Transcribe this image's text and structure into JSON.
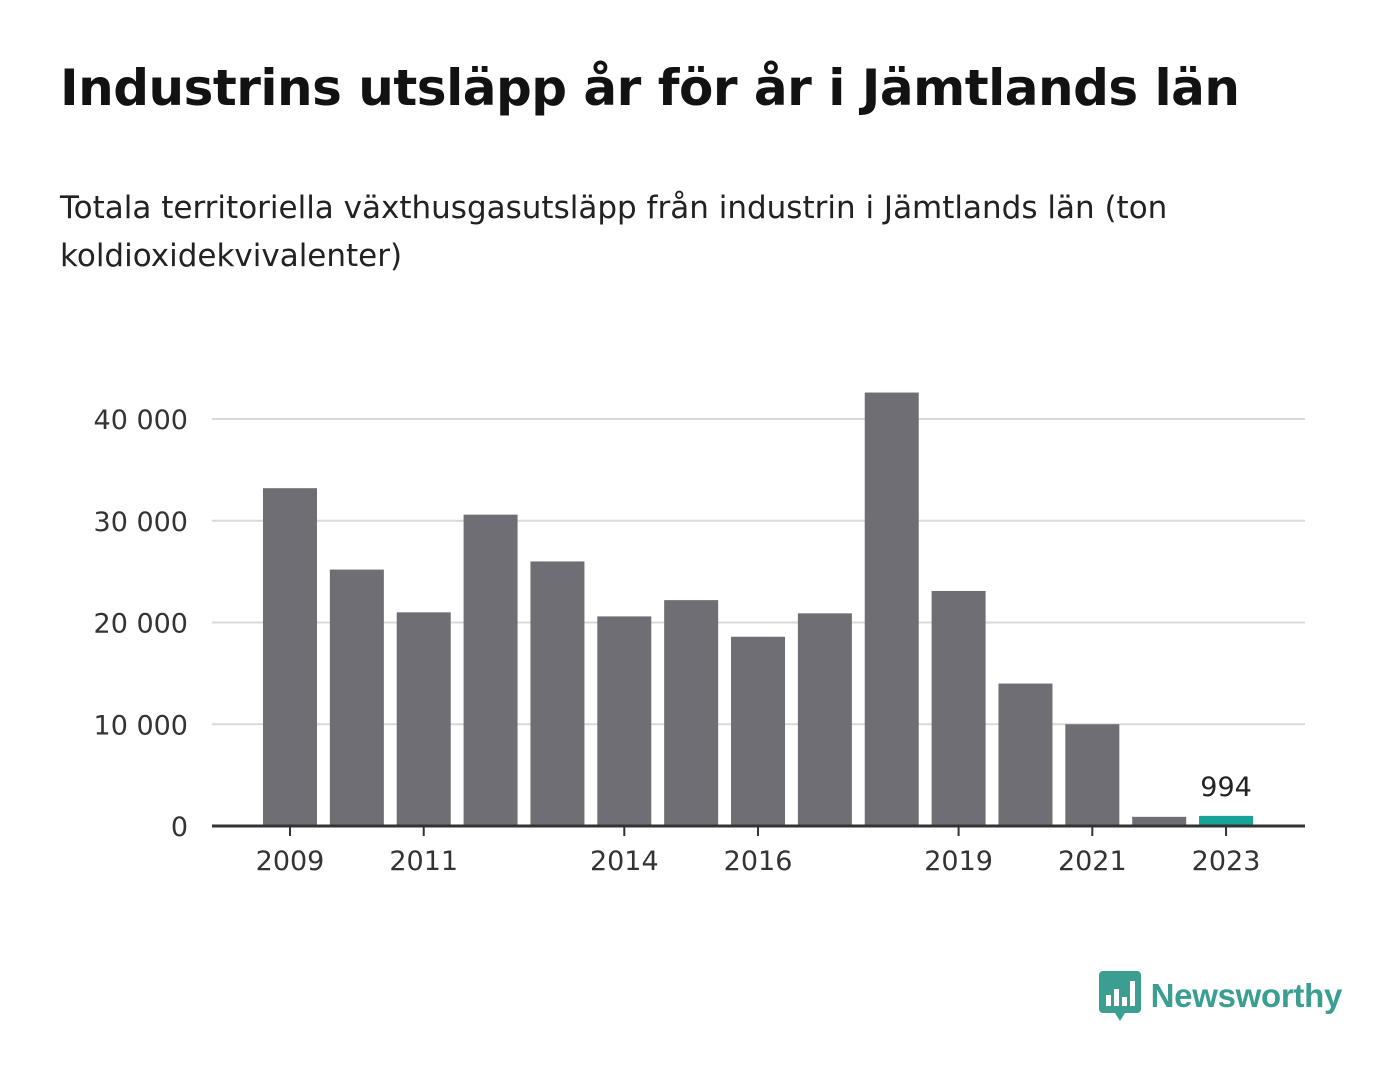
{
  "header": {
    "title": "Industrins utsläpp år för år i Jämtlands län",
    "subtitle": "Totala territoriella växthusgasutsläpp från industrin i Jämtlands län (ton koldioxidekvivalenter)"
  },
  "brand": {
    "name": "Newsworthy",
    "icon": "newsworthy-logo-icon",
    "color": "#3a9e91"
  },
  "chart_data": {
    "type": "bar",
    "title": "Industrins utsläpp år för år i Jämtlands län",
    "subtitle": "Totala territoriella växthusgasutsläpp från industrin i Jämtlands län (ton koldioxidekvivalenter)",
    "xlabel": "",
    "ylabel": "",
    "categories": [
      "2009",
      "2010",
      "2011",
      "2012",
      "2013",
      "2014",
      "2015",
      "2016",
      "2017",
      "2018",
      "2019",
      "2020",
      "2021",
      "2022",
      "2023"
    ],
    "values": [
      33200,
      25200,
      21000,
      30600,
      26000,
      20600,
      22200,
      18600,
      20900,
      42600,
      23100,
      14000,
      10000,
      900,
      994
    ],
    "x_tick_labels": [
      "2009",
      "2011",
      "2014",
      "2016",
      "2019",
      "2021",
      "2023"
    ],
    "y_ticks": [
      0,
      10000,
      20000,
      30000,
      40000
    ],
    "y_tick_labels": [
      "0",
      "10 000",
      "20 000",
      "30 000",
      "40 000"
    ],
    "ylim": [
      0,
      45000
    ],
    "grid": true,
    "bar_color": "#6f6e74",
    "highlight_color": "#17a398",
    "highlight_category": "2023",
    "data_labels": [
      {
        "category": "2023",
        "text": "994"
      }
    ]
  }
}
